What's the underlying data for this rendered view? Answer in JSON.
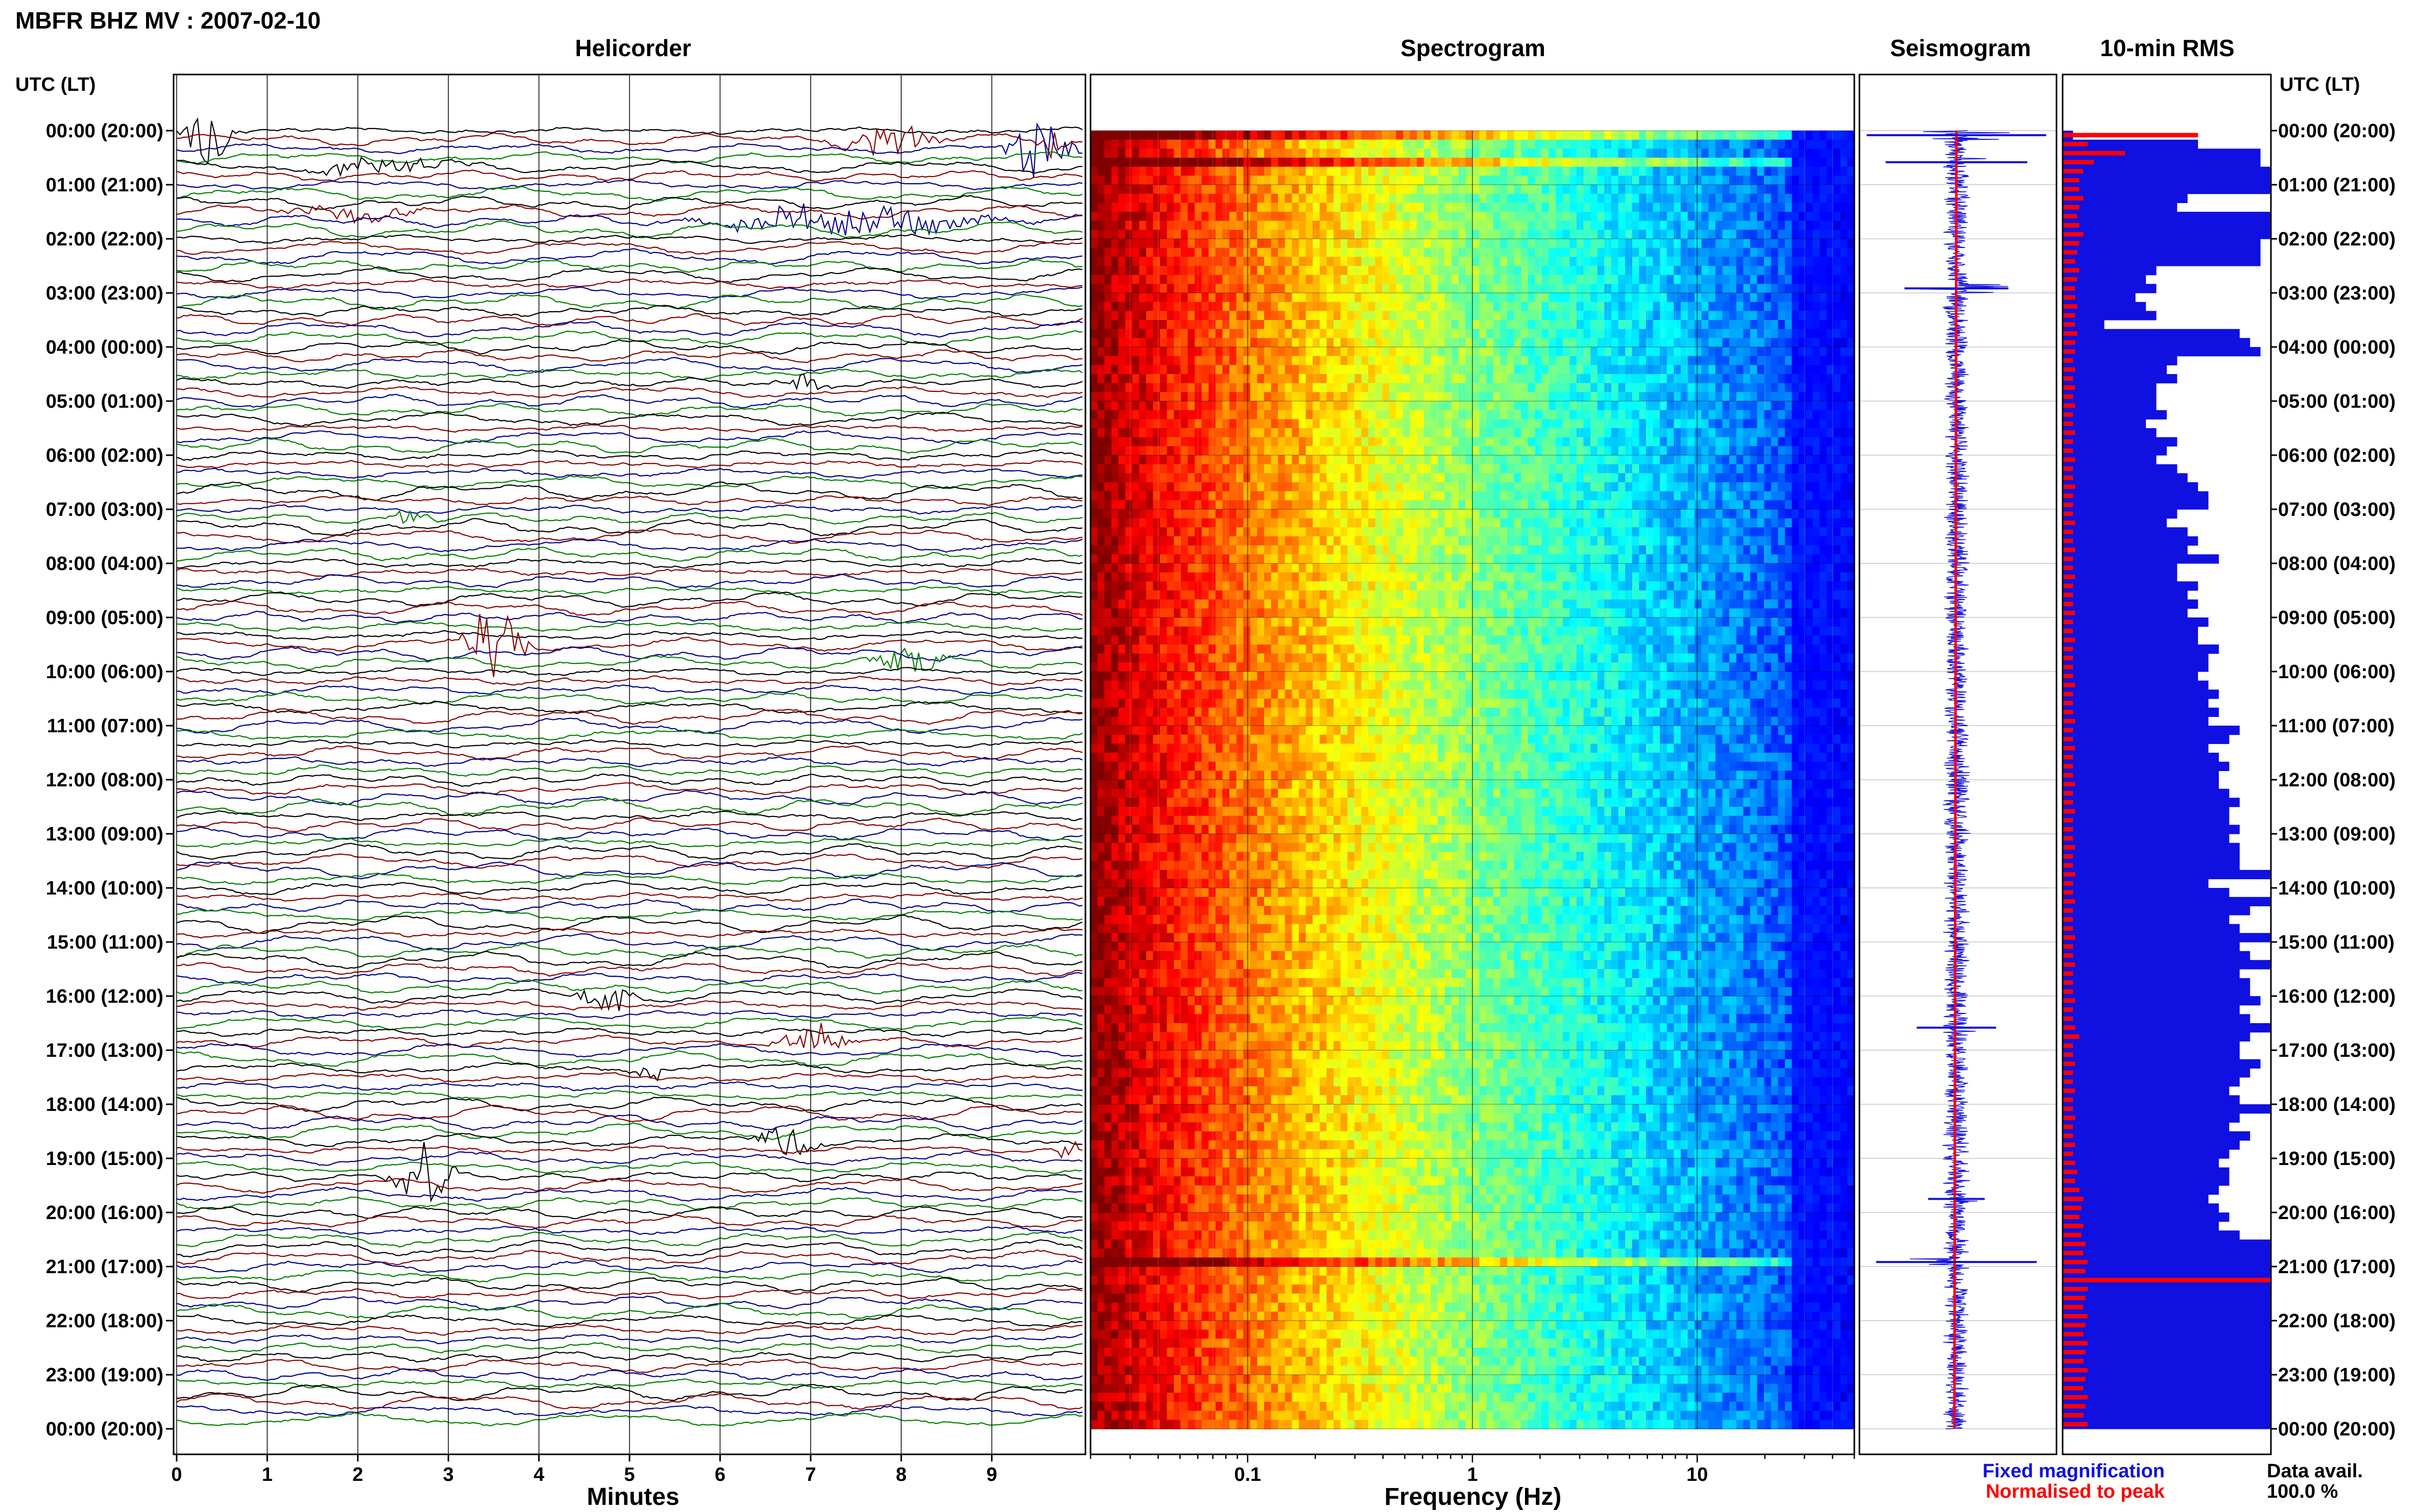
{
  "title": "MBFR BHZ MV : 2007-02-10",
  "left_header": "UTC (LT)",
  "right_header": "UTC (LT)",
  "panels": {
    "helicorder": "Helicorder",
    "spectrogram": "Spectrogram",
    "seismogram": "Seismogram",
    "rms": "10-min RMS"
  },
  "time_labels": [
    "00:00 (20:00)",
    "01:00 (21:00)",
    "02:00 (22:00)",
    "03:00 (23:00)",
    "04:00 (00:00)",
    "05:00 (01:00)",
    "06:00 (02:00)",
    "07:00 (03:00)",
    "08:00 (04:00)",
    "09:00 (05:00)",
    "10:00 (06:00)",
    "11:00 (07:00)",
    "12:00 (08:00)",
    "13:00 (09:00)",
    "14:00 (10:00)",
    "15:00 (11:00)",
    "16:00 (12:00)",
    "17:00 (13:00)",
    "18:00 (14:00)",
    "19:00 (15:00)",
    "20:00 (16:00)",
    "21:00 (17:00)",
    "22:00 (18:00)",
    "23:00 (19:00)",
    "00:00 (20:00)"
  ],
  "helicorder_axis": {
    "label": "Minutes",
    "ticks": [
      "0",
      "1",
      "2",
      "3",
      "4",
      "5",
      "6",
      "7",
      "8",
      "9"
    ]
  },
  "spectrogram_axis": {
    "label": "Frequency (Hz)",
    "ticks": [
      "0.1",
      "1",
      "10"
    ],
    "scale": "log"
  },
  "legend": {
    "fixed": "Fixed magnification",
    "normalised": "Normalised to peak",
    "fixed_color": "#1010e0",
    "normalised_color": "#ff0000"
  },
  "availability": {
    "label": "Data avail.",
    "value": "100.0 %"
  },
  "colors": {
    "trace_cycle": [
      "#000000",
      "#8b0000",
      "#00008b",
      "#008000"
    ],
    "seismogram": "#1010e0",
    "rms_fixed": "#1010e0",
    "rms_normalised": "#ff0000"
  },
  "chart_data": [
    {
      "type": "line",
      "name": "Helicorder",
      "xlabel": "Minutes",
      "xlim": [
        0,
        10
      ],
      "rows_per_hour": 6,
      "events": [
        {
          "row": 0,
          "start_min": 0.0,
          "end_min": 0.7,
          "amp": "high"
        },
        {
          "row": 1,
          "start_min": 7.1,
          "end_min": 8.6,
          "amp": "medium"
        },
        {
          "row": 1,
          "start_min": 9.4,
          "end_min": 9.9,
          "amp": "medium"
        },
        {
          "row": 2,
          "start_min": 9.0,
          "end_min": 10.0,
          "amp": "high"
        },
        {
          "row": 4,
          "start_min": 1.0,
          "end_min": 3.5,
          "amp": "low"
        },
        {
          "row": 9,
          "start_min": 0.9,
          "end_min": 3.0,
          "amp": "low"
        },
        {
          "row": 10,
          "start_min": 5.3,
          "end_min": 9.6,
          "amp": "medium"
        },
        {
          "row": 28,
          "start_min": 6.5,
          "end_min": 7.3,
          "amp": "low"
        },
        {
          "row": 43,
          "start_min": 2.2,
          "end_min": 3.0,
          "amp": "low"
        },
        {
          "row": 57,
          "start_min": 3.0,
          "end_min": 4.0,
          "amp": "high"
        },
        {
          "row": 59,
          "start_min": 7.6,
          "end_min": 8.6,
          "amp": "medium"
        },
        {
          "row": 96,
          "start_min": 4.2,
          "end_min": 5.3,
          "amp": "medium"
        },
        {
          "row": 101,
          "start_min": 6.5,
          "end_min": 7.6,
          "amp": "medium"
        },
        {
          "row": 104,
          "start_min": 5.0,
          "end_min": 5.5,
          "amp": "low"
        },
        {
          "row": 116,
          "start_min": 2.3,
          "end_min": 3.2,
          "amp": "high"
        },
        {
          "row": 112,
          "start_min": 6.3,
          "end_min": 7.2,
          "amp": "medium"
        },
        {
          "row": 113,
          "start_min": 9.7,
          "end_min": 10.0,
          "amp": "medium"
        }
      ]
    },
    {
      "type": "heatmap",
      "name": "Spectrogram",
      "xlabel": "Frequency (Hz)",
      "xscale": "log",
      "xlim": [
        0.02,
        50
      ],
      "x_ticks": [
        0.1,
        1,
        10
      ],
      "colormap": "jet",
      "rows": 144
    },
    {
      "type": "line",
      "name": "Seismogram",
      "xlim": [
        -1,
        1
      ],
      "bursts": [
        {
          "row": 0,
          "amp": 0.95
        },
        {
          "row": 3,
          "amp": 0.75
        },
        {
          "row": 17,
          "amp": 0.55
        },
        {
          "row": 99,
          "amp": 0.42
        },
        {
          "row": 118,
          "amp": 0.3
        },
        {
          "row": 125,
          "amp": 0.85
        }
      ]
    },
    {
      "type": "bar",
      "name": "10-min RMS",
      "orientation": "horizontal",
      "xlim": [
        0,
        1
      ],
      "series": [
        {
          "name": "Fixed magnification",
          "values": [
            0.05,
            0.65,
            0.95,
            0.95,
            1.0,
            1.0,
            1.0,
            0.6,
            0.55,
            1.0,
            1.0,
            1.0,
            0.95,
            0.95,
            0.95,
            0.45,
            0.4,
            0.45,
            0.35,
            0.4,
            0.45,
            0.2,
            0.85,
            0.9,
            0.95,
            0.55,
            0.5,
            0.55,
            0.45,
            0.45,
            0.45,
            0.5,
            0.4,
            0.45,
            0.55,
            0.5,
            0.45,
            0.55,
            0.6,
            0.65,
            0.7,
            0.7,
            0.55,
            0.5,
            0.6,
            0.65,
            0.6,
            0.75,
            0.55,
            0.55,
            0.65,
            0.6,
            0.65,
            0.6,
            0.7,
            0.65,
            0.65,
            0.75,
            0.7,
            0.7,
            0.65,
            0.7,
            0.75,
            0.7,
            0.75,
            0.7,
            0.85,
            0.8,
            0.7,
            0.75,
            0.8,
            0.75,
            0.75,
            0.8,
            0.85,
            0.8,
            0.8,
            0.85,
            0.8,
            0.85,
            0.85,
            0.85,
            1.0,
            0.7,
            0.8,
            1.0,
            0.9,
            0.8,
            0.85,
            1.0,
            0.85,
            0.9,
            1.0,
            0.85,
            0.9,
            0.9,
            0.95,
            0.85,
            0.9,
            1.0,
            0.9,
            0.85,
            0.85,
            0.95,
            0.9,
            0.85,
            0.8,
            0.85,
            1.0,
            0.85,
            0.8,
            0.9,
            0.85,
            0.8,
            0.75,
            0.8,
            0.8,
            0.75,
            0.7,
            0.75,
            0.8,
            0.75,
            0.85,
            1.0,
            1.0,
            1.0,
            1.0,
            1.0,
            1.0,
            1.0,
            1.0,
            1.0,
            1.0,
            1.0,
            1.0,
            1.0,
            1.0,
            1.0,
            1.0,
            1.0,
            1.0,
            1.0,
            1.0,
            1.0
          ]
        },
        {
          "name": "Normalised to peak",
          "values": [
            0.65,
            0.12,
            0.3,
            0.15,
            0.1,
            0.08,
            0.08,
            0.1,
            0.08,
            0.07,
            0.08,
            0.1,
            0.08,
            0.07,
            0.06,
            0.08,
            0.07,
            0.06,
            0.06,
            0.07,
            0.06,
            0.06,
            0.07,
            0.06,
            0.06,
            0.05,
            0.06,
            0.05,
            0.06,
            0.05,
            0.06,
            0.05,
            0.05,
            0.06,
            0.05,
            0.05,
            0.06,
            0.05,
            0.05,
            0.06,
            0.05,
            0.05,
            0.05,
            0.06,
            0.05,
            0.05,
            0.06,
            0.05,
            0.05,
            0.06,
            0.05,
            0.05,
            0.05,
            0.06,
            0.05,
            0.05,
            0.06,
            0.05,
            0.05,
            0.05,
            0.05,
            0.06,
            0.05,
            0.05,
            0.05,
            0.06,
            0.05,
            0.05,
            0.06,
            0.05,
            0.05,
            0.05,
            0.06,
            0.05,
            0.05,
            0.06,
            0.05,
            0.05,
            0.05,
            0.06,
            0.05,
            0.05,
            0.06,
            0.05,
            0.05,
            0.06,
            0.05,
            0.05,
            0.05,
            0.06,
            0.05,
            0.05,
            0.06,
            0.05,
            0.05,
            0.05,
            0.06,
            0.05,
            0.05,
            0.06,
            0.08,
            0.05,
            0.05,
            0.06,
            0.05,
            0.05,
            0.06,
            0.05,
            0.05,
            0.06,
            0.05,
            0.05,
            0.06,
            0.05,
            0.06,
            0.07,
            0.06,
            0.08,
            0.1,
            0.09,
            0.08,
            0.1,
            0.09,
            0.11,
            0.1,
            0.12,
            0.11,
            1.0,
            0.12,
            0.11,
            0.1,
            0.12,
            0.11,
            0.1,
            0.12,
            0.11,
            0.1,
            0.12,
            0.11,
            0.1,
            0.12,
            0.11,
            0.1,
            0.12
          ]
        }
      ]
    }
  ]
}
